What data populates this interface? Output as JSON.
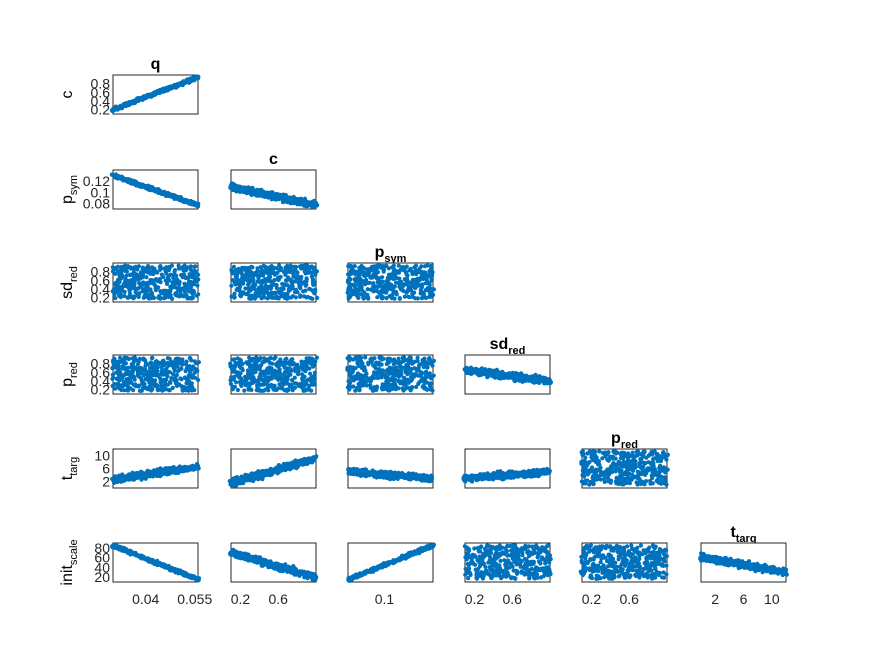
{
  "chart_data": {
    "type": "scatter",
    "description_kind": "pairwise scatter-plot matrix (lower triangle)",
    "marker_color": "#0072BD",
    "variables": [
      {
        "id": "q",
        "main": "q",
        "sub": "",
        "range": [
          0.03,
          0.056
        ],
        "ticks": [
          0.04,
          0.055
        ],
        "tick_labels": [
          "0.04",
          "0.055"
        ]
      },
      {
        "id": "c",
        "main": "c",
        "sub": "",
        "range": [
          0.1,
          1.0
        ],
        "ticks": [
          0.2,
          0.6
        ],
        "tick_labels": [
          "0.2",
          "0.6"
        ],
        "row_ticks": [
          0.2,
          0.4,
          0.6,
          0.8
        ],
        "row_tick_labels": [
          "0.2",
          "0.4",
          "0.6",
          "0.8"
        ]
      },
      {
        "id": "p_sym",
        "main": "p",
        "sub": "sym",
        "range": [
          0.07,
          0.14
        ],
        "ticks": [
          0.1
        ],
        "tick_labels": [
          "0.1"
        ],
        "row_ticks": [
          0.08,
          0.1,
          0.12
        ],
        "row_tick_labels": [
          "0.08",
          "0.1",
          "0.12"
        ]
      },
      {
        "id": "sd_red",
        "main": "sd",
        "sub": "red",
        "range": [
          0.1,
          1.0
        ],
        "ticks": [
          0.2,
          0.6
        ],
        "tick_labels": [
          "0.2",
          "0.6"
        ],
        "row_ticks": [
          0.2,
          0.4,
          0.6,
          0.8
        ],
        "row_tick_labels": [
          "0.2",
          "0.4",
          "0.6",
          "0.8"
        ]
      },
      {
        "id": "p_red",
        "main": "p",
        "sub": "red",
        "range": [
          0.1,
          1.0
        ],
        "ticks": [
          0.2,
          0.6
        ],
        "tick_labels": [
          "0.2",
          "0.6"
        ],
        "row_ticks": [
          0.2,
          0.4,
          0.6,
          0.8
        ],
        "row_tick_labels": [
          "0.2",
          "0.4",
          "0.6",
          "0.8"
        ]
      },
      {
        "id": "t_targ",
        "main": "t",
        "sub": "targ",
        "range": [
          0,
          12
        ],
        "ticks": [
          2,
          6,
          10
        ],
        "tick_labels": [
          "2",
          "6",
          "10"
        ],
        "row_ticks": [
          2,
          6,
          10
        ],
        "row_tick_labels": [
          "2",
          "6",
          "10"
        ]
      },
      {
        "id": "init_scale",
        "main": "init",
        "sub": "scale",
        "range": [
          10,
          90
        ],
        "row_ticks": [
          20,
          40,
          60,
          80
        ],
        "row_tick_labels": [
          "20",
          "40",
          "60",
          "80"
        ]
      }
    ],
    "row_variables": [
      "c",
      "p_sym",
      "sd_red",
      "p_red",
      "t_targ",
      "init_scale"
    ],
    "column_variables": [
      "q",
      "c",
      "p_sym",
      "sd_red",
      "p_red",
      "t_targ"
    ],
    "panel_trends": [
      {
        "row": "c",
        "col": "q",
        "trend": "positive, tight",
        "y_from": 0.2,
        "y_to": 0.95
      },
      {
        "row": "p_sym",
        "col": "q",
        "trend": "negative, tight",
        "y_from": 0.13,
        "y_to": 0.077
      },
      {
        "row": "p_sym",
        "col": "c",
        "trend": "negative",
        "y_from": 0.11,
        "y_to": 0.077
      },
      {
        "row": "sd_red",
        "col": "q",
        "trend": "none",
        "y_from": 0.5,
        "y_to": 0.5
      },
      {
        "row": "sd_red",
        "col": "c",
        "trend": "none",
        "y_from": 0.5,
        "y_to": 0.5
      },
      {
        "row": "sd_red",
        "col": "p_sym",
        "trend": "none",
        "y_from": 0.5,
        "y_to": 0.5
      },
      {
        "row": "p_red",
        "col": "q",
        "trend": "none",
        "y_from": 0.55,
        "y_to": 0.55
      },
      {
        "row": "p_red",
        "col": "c",
        "trend": "none",
        "y_from": 0.55,
        "y_to": 0.55
      },
      {
        "row": "p_red",
        "col": "p_sym",
        "trend": "none",
        "y_from": 0.55,
        "y_to": 0.55
      },
      {
        "row": "p_red",
        "col": "sd_red",
        "trend": "slight negative",
        "y_from": 0.65,
        "y_to": 0.4
      },
      {
        "row": "t_targ",
        "col": "q",
        "trend": "positive",
        "y_from": 2.5,
        "y_to": 6.5
      },
      {
        "row": "t_targ",
        "col": "c",
        "trend": "positive",
        "y_from": 1.5,
        "y_to": 9
      },
      {
        "row": "t_targ",
        "col": "p_sym",
        "trend": "slight negative",
        "y_from": 5,
        "y_to": 3
      },
      {
        "row": "t_targ",
        "col": "sd_red",
        "trend": "slight positive",
        "y_from": 3,
        "y_to": 5
      },
      {
        "row": "t_targ",
        "col": "p_red",
        "trend": "none",
        "y_from": 4,
        "y_to": 4
      },
      {
        "row": "init_scale",
        "col": "q",
        "trend": "negative, tight",
        "y_from": 85,
        "y_to": 15
      },
      {
        "row": "init_scale",
        "col": "c",
        "trend": "negative",
        "y_from": 70,
        "y_to": 20
      },
      {
        "row": "init_scale",
        "col": "p_sym",
        "trend": "positive, tight",
        "y_from": 15,
        "y_to": 85
      },
      {
        "row": "init_scale",
        "col": "sd_red",
        "trend": "none",
        "y_from": 45,
        "y_to": 45
      },
      {
        "row": "init_scale",
        "col": "p_red",
        "trend": "none",
        "y_from": 45,
        "y_to": 45
      },
      {
        "row": "init_scale",
        "col": "t_targ",
        "trend": "negative",
        "y_from": 60,
        "y_to": 30
      }
    ],
    "grid": false,
    "legend": "none"
  }
}
